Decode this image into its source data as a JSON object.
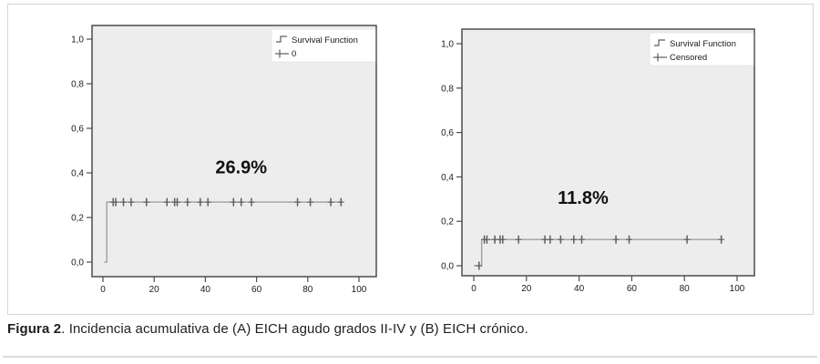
{
  "figure": {
    "caption_label": "Figura 2",
    "caption_text": ". Incidencia acumulativa de (A) EICH agudo grados II-IV y (B) EICH crónico."
  },
  "colors": {
    "plot_bg": "#ededed",
    "plot_border": "#4d4d4d",
    "curve": "#a0a0a0",
    "censor": "#5e5e5e",
    "tick_text": "#1a1a1a",
    "annotation_text": "#111111",
    "legend_bg": "#ffffff",
    "legend_border": "#e3e3e3",
    "legend_text": "#1a1a1a"
  },
  "chart_data": [
    {
      "id": "A",
      "type": "line",
      "subtype": "cumulative-incidence-step",
      "title": "",
      "xlabel": "",
      "ylabel": "",
      "xlim": [
        -4,
        106
      ],
      "ylim": [
        0,
        1.06
      ],
      "x_ticks": [
        0,
        20,
        40,
        60,
        80,
        100
      ],
      "y_tick_labels": [
        "0,0",
        "0,2",
        "0,4",
        "0,6",
        "0,8",
        "1,0"
      ],
      "y_tick_values": [
        0,
        0.2,
        0.4,
        0.6,
        0.8,
        1.0
      ],
      "legend": {
        "line_label": "Survival Function",
        "censor_label": "0"
      },
      "annotation": {
        "text": "26.9%",
        "x": 54,
        "y": 0.42
      },
      "step": {
        "start_x": 0.5,
        "rise_x": 1.5,
        "plateau": 0.269,
        "end_x": 93.5
      },
      "censored_times": [
        4,
        5,
        8,
        11,
        17,
        25,
        28,
        29,
        33,
        38,
        41,
        51,
        54,
        58,
        76,
        81,
        89,
        93
      ],
      "censored_at_zero": []
    },
    {
      "id": "B",
      "type": "line",
      "subtype": "cumulative-incidence-step",
      "title": "",
      "xlabel": "",
      "ylabel": "",
      "xlim": [
        -4,
        106
      ],
      "ylim": [
        0,
        1.06
      ],
      "x_ticks": [
        0,
        20,
        40,
        60,
        80,
        100
      ],
      "y_tick_labels": [
        "0,0",
        "0,2",
        "0,4",
        "0,6",
        "0,8",
        "1,0"
      ],
      "y_tick_values": [
        0,
        0.2,
        0.4,
        0.6,
        0.8,
        1.0
      ],
      "legend": {
        "line_label": "Survival Function",
        "censor_label": "Censored"
      },
      "annotation": {
        "text": "11.8%",
        "x": 41.5,
        "y": 0.3
      },
      "step": {
        "start_x": 0,
        "rise_x": 3,
        "plateau": 0.118,
        "end_x": 94
      },
      "censored_times": [
        4,
        5,
        8,
        10,
        11,
        17,
        27,
        29,
        33,
        38,
        41,
        54,
        59,
        81,
        94
      ],
      "censored_at_zero": [
        2
      ]
    }
  ]
}
